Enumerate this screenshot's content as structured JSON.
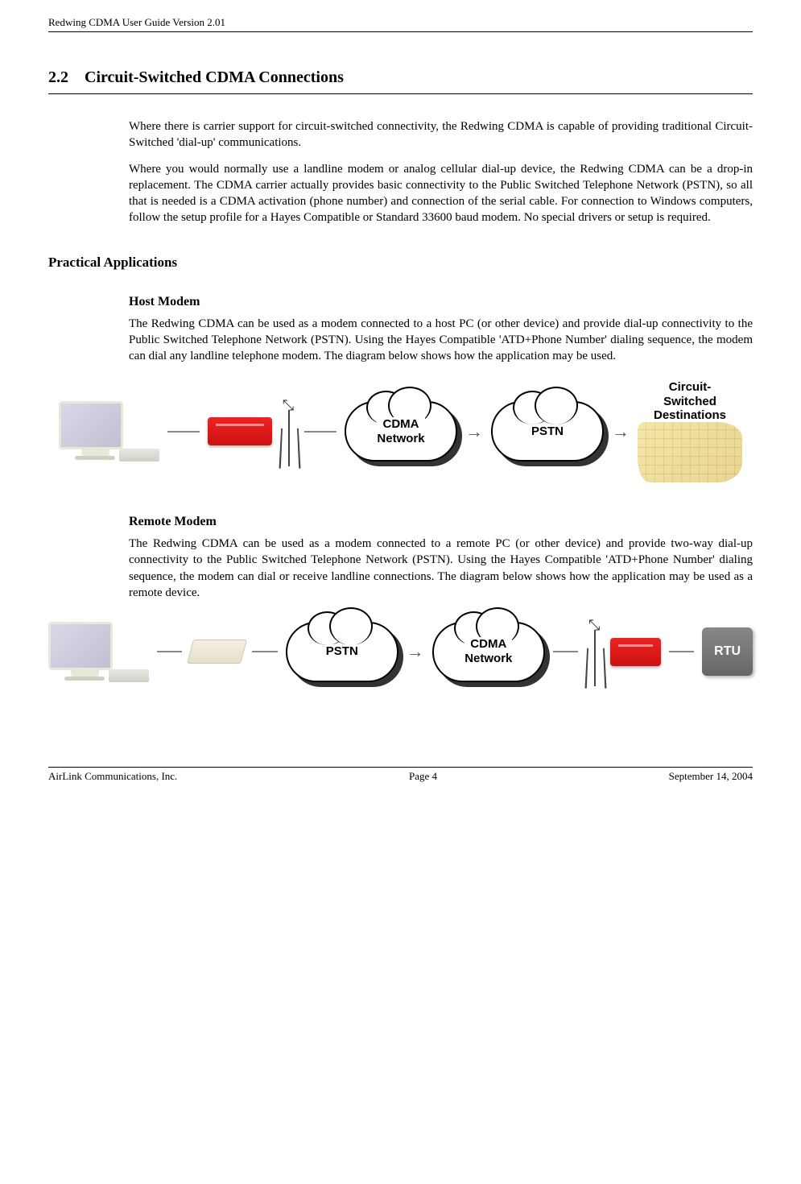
{
  "header": "Redwing CDMA User Guide Version 2.01",
  "section": {
    "number": "2.2",
    "title": "Circuit-Switched CDMA Connections"
  },
  "intro": {
    "p1": "Where there is carrier support for circuit-switched connectivity, the Redwing CDMA is capable of providing traditional Circuit-Switched 'dial-up' communications.",
    "p2": "Where you would normally use a landline modem or analog cellular dial-up device, the Redwing CDMA can be a drop-in replacement. The CDMA carrier actually provides basic connectivity to the Public Switched Telephone Network (PSTN), so all that is needed is a CDMA activation (phone number) and connection of the serial cable. For connection to Windows computers, follow the setup profile for a Hayes Compatible or Standard 33600 baud modem. No special drivers or setup is required."
  },
  "practical": {
    "title": "Practical Applications",
    "host": {
      "heading": "Host Modem",
      "text": "The Redwing CDMA can be used as a modem connected to a host PC (or other device) and provide dial-up connectivity to the Public Switched Telephone Network (PSTN). Using the Hayes Compatible 'ATD+Phone Number' dialing sequence, the modem can dial any landline telephone modem. The diagram below shows how the application may be used."
    },
    "remote": {
      "heading": "Remote Modem",
      "text": "The Redwing CDMA can be used as a modem connected to a remote PC (or other device) and provide two-way dial-up connectivity to the Public Switched Telephone Network (PSTN). Using the Hayes Compatible 'ATD+Phone Number' dialing sequence, the modem can dial or receive landline connections. The diagram below shows how the application may be used as a remote device."
    }
  },
  "diagram1": {
    "cloud1": "CDMA\nNetwork",
    "cloud2": "PSTN",
    "dest_label": "Circuit-\nSwitched\nDestinations"
  },
  "diagram2": {
    "cloud1": "PSTN",
    "cloud2": "CDMA\nNetwork",
    "rtu": "RTU"
  },
  "footer": {
    "left": "AirLink Communications, Inc.",
    "center": "Page 4",
    "right": "September 14, 2004"
  }
}
